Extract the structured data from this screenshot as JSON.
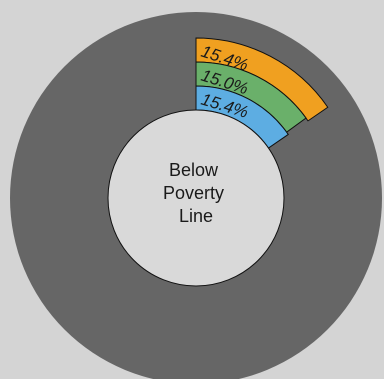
{
  "chart_data": {
    "type": "pie",
    "title": "",
    "center_label": [
      "Below",
      "Poverty",
      "Line"
    ],
    "background_color": "#666666",
    "inner_circle_color": "#d9d9d9",
    "rings": [
      {
        "label": "15.4%",
        "value": 15.4,
        "color": "#5dade2"
      },
      {
        "label": "15.0%",
        "value": 15.0,
        "color": "#6ab06a"
      },
      {
        "label": "15.4%",
        "value": 15.4,
        "color": "#f0a020"
      }
    ]
  }
}
